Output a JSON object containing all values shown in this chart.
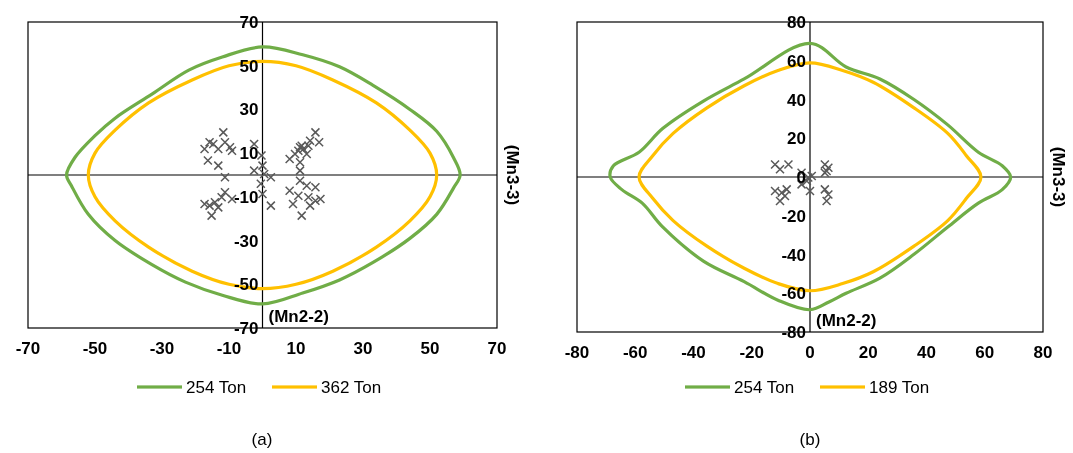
{
  "chart_data": [
    {
      "type": "scatter",
      "title": "(a)",
      "xlabel": "(Mn2-2)",
      "ylabel": "(Mn3-3)",
      "xlim": [
        -70,
        70
      ],
      "ylim": [
        -70,
        70
      ],
      "xticks": [
        -70,
        -50,
        -30,
        -10,
        10,
        30,
        50,
        70
      ],
      "yticks": [
        -70,
        -50,
        -30,
        -10,
        10,
        30,
        50,
        70
      ],
      "marker": "cross",
      "annotations": [
        "254 Ton",
        "362 Ton"
      ],
      "series": [
        {
          "color": "#595959",
          "x": [
            -11.7,
            -15.8,
            -17.3,
            -14.7,
            -13.2,
            -11.2,
            -9.7,
            -16.3,
            -13.2,
            -9.1,
            -2.5,
            -0.3,
            0,
            -2.5,
            0.5,
            2.5,
            -0.5,
            0,
            2.5,
            -11.2,
            -15.8,
            -17.3,
            -14.2,
            -12.2,
            -9.1,
            -15.2,
            -11.2,
            -13.2,
            15.8,
            16.9,
            14.2,
            11.2,
            10.7,
            12.2,
            13.2,
            9.7,
            8.1,
            11.2,
            11.2,
            11.7,
            13.7,
            11.2,
            13.2,
            15.8,
            8.1,
            10.7,
            13.7,
            15.8,
            17.3,
            14.2,
            11.7,
            9.1
          ],
          "values": [
            19.5,
            15,
            11.9,
            14.2,
            11.9,
            15,
            12.7,
            6.6,
            4.3,
            11.1,
            14.2,
            8.9,
            4.3,
            2,
            0.5,
            -1,
            -4,
            -8.7,
            -14,
            -1,
            -14,
            -13.3,
            -12.5,
            -10.2,
            -11,
            -18.6,
            -7.9,
            -14.8,
            19.5,
            15,
            15.7,
            12.7,
            11.1,
            11.9,
            9.6,
            9.6,
            7.3,
            5.8,
            2,
            13.4,
            13.4,
            -2.6,
            -4.9,
            -5.6,
            -7.2,
            -9.5,
            -10.2,
            -11.8,
            -11,
            -14,
            -18.6,
            -13.3
          ]
        }
      ]
    },
    {
      "type": "scatter",
      "title": "(b)",
      "xlabel": "(Mn2-2)",
      "ylabel": "(Mn3-3)",
      "xlim": [
        -80,
        80
      ],
      "ylim": [
        -80,
        80
      ],
      "xticks": [
        -80,
        -60,
        -40,
        -20,
        0,
        20,
        40,
        60,
        80
      ],
      "yticks": [
        -80,
        -60,
        -40,
        -20,
        0,
        20,
        40,
        60,
        80
      ],
      "marker": "cross",
      "annotations": [
        "254 Ton",
        "189 Ton"
      ],
      "series": [
        {
          "color": "#595959",
          "x": [
            -12,
            -7.4,
            -10.3,
            5.1,
            6.3,
            5.1,
            -2.9,
            -0.6,
            0.6,
            -2.9,
            0,
            -12,
            -9.7,
            -8,
            -10.3,
            -8.6,
            5.1,
            6.3,
            5.7,
            -1.1,
            5.7
          ],
          "values": [
            6.5,
            6.5,
            4,
            6.5,
            4.8,
            2.2,
            2.2,
            -0.3,
            0.5,
            -3.8,
            -7.2,
            -7.2,
            -8.1,
            -6.4,
            -12.4,
            -9.8,
            -6.4,
            -9,
            -12.4,
            -2.1,
            3.1
          ]
        }
      ]
    }
  ]
}
